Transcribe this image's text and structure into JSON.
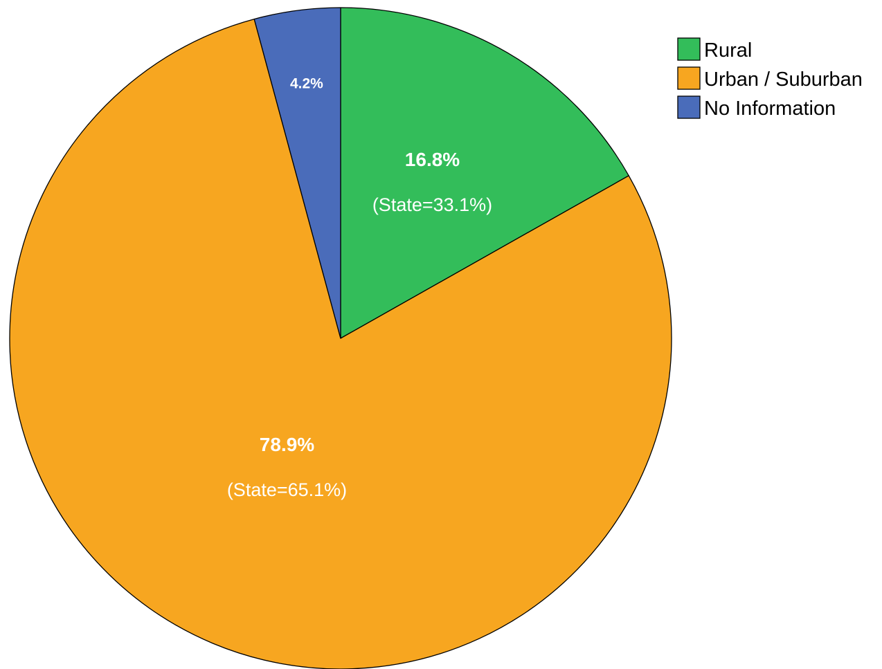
{
  "chart_data": {
    "type": "pie",
    "start_angle_deg": 0,
    "direction": "clockwise",
    "legend_position": "top-right",
    "slices": [
      {
        "name": "Rural",
        "value": 16.8,
        "label": "16.8%",
        "state_label": "(State=33.1%)",
        "color": "#33bd5a"
      },
      {
        "name": "Urban / Suburban",
        "value": 78.9,
        "label": "78.9%",
        "state_label": "(State=65.1%)",
        "color": "#f7a620"
      },
      {
        "name": "No Information",
        "value": 4.2,
        "label": "4.2%",
        "state_label": "",
        "color": "#4a6cba"
      }
    ]
  }
}
